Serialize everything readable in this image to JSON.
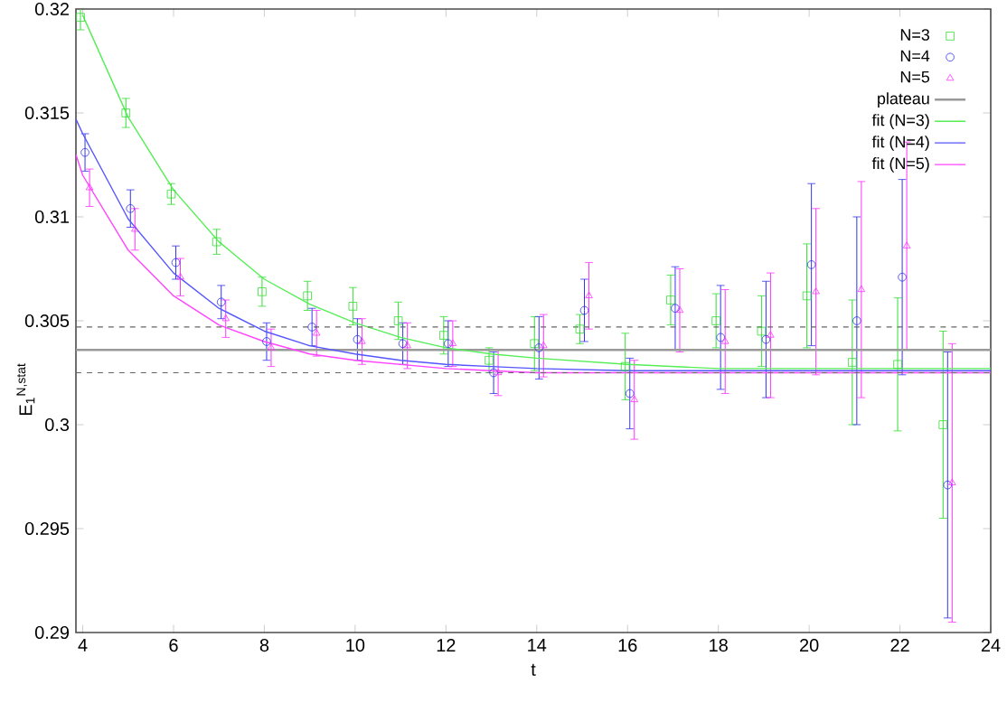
{
  "chart_data": {
    "type": "scatter",
    "xlabel": "t",
    "ylabel": "E$_{1}$$^{N,stat}$",
    "xlim": [
      3.85,
      24
    ],
    "ylim": [
      0.29,
      0.32
    ],
    "xticks": [
      4,
      6,
      8,
      10,
      12,
      14,
      16,
      18,
      20,
      22,
      24
    ],
    "yticks": [
      0.29,
      0.295,
      0.3,
      0.305,
      0.31,
      0.315,
      0.32
    ],
    "legend": "top right",
    "series": [
      {
        "name": "N=3",
        "color": "#33dd33",
        "marker": "square",
        "x": [
          3.95,
          4.95,
          5.95,
          6.95,
          7.95,
          8.95,
          9.95,
          10.95,
          11.95,
          12.95,
          13.95,
          14.95,
          15.95,
          16.95,
          17.95,
          18.95,
          19.95,
          20.95,
          21.95,
          22.95
        ],
        "values": [
          0.3196,
          0.315,
          0.3111,
          0.3088,
          0.3064,
          0.3062,
          0.3057,
          0.305,
          0.3043,
          0.3031,
          0.3039,
          0.3046,
          0.3028,
          0.306,
          0.305,
          0.3045,
          0.3062,
          0.303,
          0.3029,
          0.3
        ],
        "errors": [
          0.0006,
          0.0007,
          0.0005,
          0.0006,
          0.0007,
          0.0007,
          0.0009,
          0.0009,
          0.0009,
          0.0006,
          0.0013,
          0.0007,
          0.0016,
          0.0012,
          0.0013,
          0.0017,
          0.0025,
          0.003,
          0.0032,
          0.0045
        ]
      },
      {
        "name": "N=4",
        "color": "#3333ee",
        "marker": "circle",
        "x": [
          4.05,
          5.05,
          6.05,
          7.05,
          8.05,
          9.05,
          10.05,
          11.05,
          12.05,
          13.05,
          14.05,
          15.05,
          16.05,
          17.05,
          18.05,
          19.05,
          20.05,
          21.05,
          22.05,
          23.05
        ],
        "values": [
          0.3131,
          0.3104,
          0.3078,
          0.3059,
          0.304,
          0.3047,
          0.3041,
          0.3039,
          0.3039,
          0.3025,
          0.3037,
          0.3055,
          0.3015,
          0.3056,
          0.3042,
          0.3041,
          0.3077,
          0.305,
          0.3071,
          0.2971
        ],
        "errors": [
          0.0009,
          0.0009,
          0.0008,
          0.0008,
          0.0009,
          0.0009,
          0.001,
          0.001,
          0.0011,
          0.001,
          0.0015,
          0.0015,
          0.0017,
          0.002,
          0.0025,
          0.0028,
          0.0039,
          0.005,
          0.0047,
          0.0064
        ]
      },
      {
        "name": "N=5",
        "color": "#ff33ff",
        "marker": "triangle",
        "x": [
          4.15,
          5.15,
          6.15,
          7.15,
          8.15,
          9.15,
          10.15,
          11.15,
          12.15,
          13.15,
          14.15,
          15.15,
          16.15,
          17.15,
          18.15,
          19.15,
          20.15,
          21.15,
          22.15,
          23.15
        ],
        "values": [
          0.3114,
          0.3094,
          0.3071,
          0.3051,
          0.3037,
          0.3044,
          0.304,
          0.3038,
          0.3039,
          0.3025,
          0.3038,
          0.3062,
          0.3012,
          0.3055,
          0.304,
          0.3043,
          0.3064,
          0.3065,
          0.3086,
          0.2972
        ],
        "errors": [
          0.0009,
          0.001,
          0.0009,
          0.0009,
          0.0009,
          0.0011,
          0.0011,
          0.0011,
          0.0011,
          0.0011,
          0.0015,
          0.0016,
          0.0019,
          0.002,
          0.0025,
          0.003,
          0.004,
          0.0052,
          0.005,
          0.0067
        ]
      },
      {
        "type": "line",
        "name": "plateau",
        "color": "#999999",
        "x": [
          3.85,
          24
        ],
        "values": [
          0.3036,
          0.3036
        ]
      },
      {
        "type": "line",
        "name": "fit (N=3)",
        "color": "#55ee55",
        "x": [
          4,
          5,
          6,
          7,
          8,
          9,
          10,
          11,
          12,
          13,
          14,
          16,
          18,
          20,
          24
        ],
        "values": [
          0.3197,
          0.3148,
          0.3113,
          0.3088,
          0.307,
          0.3058,
          0.3049,
          0.3042,
          0.3037,
          0.3034,
          0.3032,
          0.3029,
          0.3027,
          0.3027,
          0.3027
        ]
      },
      {
        "type": "line",
        "name": "fit (N=4)",
        "color": "#5555ff",
        "x": [
          3.85,
          4,
          5,
          6,
          7,
          8,
          9,
          10,
          11,
          12,
          13,
          14,
          16,
          24
        ],
        "values": [
          0.3147,
          0.314,
          0.3099,
          0.3073,
          0.3056,
          0.3045,
          0.3038,
          0.3034,
          0.3031,
          0.3029,
          0.3028,
          0.3027,
          0.3026,
          0.3026
        ]
      },
      {
        "type": "line",
        "name": "fit (N=5)",
        "color": "#ff44ff",
        "x": [
          3.85,
          4,
          5,
          6,
          7,
          8,
          9,
          10,
          11,
          12,
          13,
          14,
          24
        ],
        "values": [
          0.313,
          0.312,
          0.3084,
          0.3062,
          0.3048,
          0.304,
          0.3034,
          0.3031,
          0.3029,
          0.3027,
          0.3026,
          0.3025,
          0.3025
        ]
      }
    ],
    "ref_lines": [
      {
        "axis": "y",
        "value": 0.3047,
        "color": "#666666",
        "line_style": "dashed"
      },
      {
        "axis": "y",
        "value": 0.3025,
        "color": "#666666",
        "line_style": "dashed"
      }
    ]
  }
}
